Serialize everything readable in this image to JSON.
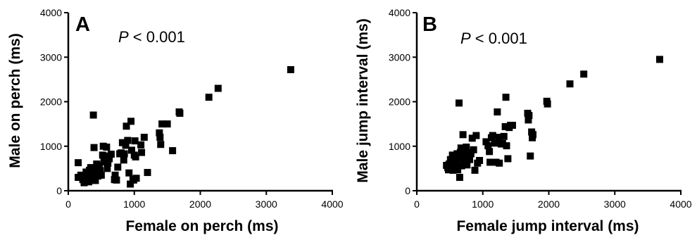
{
  "chart_data": [
    {
      "panel": "A",
      "type": "scatter",
      "xlabel": "Female on perch (ms)",
      "ylabel": "Male on perch (ms)",
      "annotation": {
        "p_symbol": "P",
        "p_text": " < 0.001"
      },
      "xlim": [
        0,
        4000
      ],
      "ylim": [
        0,
        4000
      ],
      "xticks": [
        0,
        1000,
        2000,
        3000,
        4000
      ],
      "yticks": [
        0,
        1000,
        2000,
        3000,
        4000
      ],
      "grid": false,
      "marker": "square",
      "color": "#000000",
      "points": [
        [
          150,
          630
        ],
        [
          150,
          300
        ],
        [
          190,
          350
        ],
        [
          220,
          250
        ],
        [
          240,
          180
        ],
        [
          260,
          330
        ],
        [
          270,
          420
        ],
        [
          290,
          380
        ],
        [
          300,
          300
        ],
        [
          310,
          200
        ],
        [
          320,
          460
        ],
        [
          330,
          350
        ],
        [
          340,
          520
        ],
        [
          350,
          420
        ],
        [
          360,
          300
        ],
        [
          370,
          380
        ],
        [
          380,
          1700
        ],
        [
          390,
          970
        ],
        [
          400,
          500
        ],
        [
          410,
          230
        ],
        [
          420,
          430
        ],
        [
          430,
          600
        ],
        [
          440,
          380
        ],
        [
          450,
          330
        ],
        [
          470,
          560
        ],
        [
          480,
          450
        ],
        [
          500,
          350
        ],
        [
          520,
          800
        ],
        [
          530,
          1000
        ],
        [
          540,
          650
        ],
        [
          560,
          780
        ],
        [
          580,
          980
        ],
        [
          590,
          500
        ],
        [
          600,
          620
        ],
        [
          620,
          720
        ],
        [
          650,
          820
        ],
        [
          700,
          250
        ],
        [
          710,
          350
        ],
        [
          730,
          240
        ],
        [
          750,
          530
        ],
        [
          780,
          830
        ],
        [
          800,
          850
        ],
        [
          820,
          1080
        ],
        [
          840,
          690
        ],
        [
          850,
          830
        ],
        [
          870,
          1020
        ],
        [
          880,
          1450
        ],
        [
          900,
          1130
        ],
        [
          920,
          400
        ],
        [
          940,
          150
        ],
        [
          950,
          1560
        ],
        [
          960,
          910
        ],
        [
          980,
          250
        ],
        [
          990,
          240
        ],
        [
          1000,
          800
        ],
        [
          1010,
          1120
        ],
        [
          1020,
          760
        ],
        [
          1030,
          280
        ],
        [
          1100,
          1030
        ],
        [
          1110,
          860
        ],
        [
          1150,
          1200
        ],
        [
          1200,
          410
        ],
        [
          1380,
          1300
        ],
        [
          1390,
          1200
        ],
        [
          1400,
          1040
        ],
        [
          1420,
          1500
        ],
        [
          1500,
          1500
        ],
        [
          1580,
          900
        ],
        [
          1680,
          1770
        ],
        [
          1690,
          1740
        ],
        [
          2130,
          2100
        ],
        [
          2270,
          2300
        ],
        [
          3370,
          2720
        ]
      ]
    },
    {
      "panel": "B",
      "type": "scatter",
      "xlabel": "Female jump interval (ms)",
      "ylabel": "Male jump interval (ms)",
      "annotation": {
        "p_symbol": "P",
        "p_text": " < 0.001"
      },
      "xlim": [
        0,
        4000
      ],
      "ylim": [
        0,
        4000
      ],
      "xticks": [
        0,
        1000,
        2000,
        3000,
        4000
      ],
      "yticks": [
        0,
        1000,
        2000,
        3000,
        4000
      ],
      "grid": false,
      "marker": "square",
      "color": "#000000",
      "points": [
        [
          450,
          570
        ],
        [
          470,
          520
        ],
        [
          480,
          470
        ],
        [
          490,
          600
        ],
        [
          510,
          700
        ],
        [
          520,
          580
        ],
        [
          530,
          530
        ],
        [
          540,
          800
        ],
        [
          550,
          460
        ],
        [
          560,
          650
        ],
        [
          570,
          760
        ],
        [
          580,
          550
        ],
        [
          590,
          700
        ],
        [
          600,
          620
        ],
        [
          610,
          830
        ],
        [
          620,
          470
        ],
        [
          630,
          720
        ],
        [
          640,
          1970
        ],
        [
          650,
          300
        ],
        [
          660,
          860
        ],
        [
          670,
          960
        ],
        [
          680,
          560
        ],
        [
          690,
          900
        ],
        [
          700,
          1260
        ],
        [
          710,
          780
        ],
        [
          720,
          680
        ],
        [
          730,
          950
        ],
        [
          740,
          720
        ],
        [
          750,
          980
        ],
        [
          760,
          580
        ],
        [
          780,
          860
        ],
        [
          800,
          700
        ],
        [
          820,
          830
        ],
        [
          840,
          1180
        ],
        [
          860,
          920
        ],
        [
          880,
          460
        ],
        [
          900,
          1240
        ],
        [
          920,
          620
        ],
        [
          950,
          680
        ],
        [
          1050,
          1100
        ],
        [
          1080,
          1010
        ],
        [
          1100,
          880
        ],
        [
          1110,
          640
        ],
        [
          1130,
          1190
        ],
        [
          1150,
          1240
        ],
        [
          1180,
          1070
        ],
        [
          1200,
          640
        ],
        [
          1220,
          1770
        ],
        [
          1240,
          1200
        ],
        [
          1250,
          620
        ],
        [
          1280,
          1050
        ],
        [
          1300,
          1060
        ],
        [
          1320,
          1220
        ],
        [
          1340,
          1440
        ],
        [
          1350,
          2100
        ],
        [
          1360,
          1010
        ],
        [
          1380,
          720
        ],
        [
          1400,
          1420
        ],
        [
          1420,
          1470
        ],
        [
          1450,
          1470
        ],
        [
          1680,
          1740
        ],
        [
          1690,
          1590
        ],
        [
          1700,
          1690
        ],
        [
          1720,
          780
        ],
        [
          1740,
          1320
        ],
        [
          1750,
          1190
        ],
        [
          1760,
          1260
        ],
        [
          1970,
          2010
        ],
        [
          1980,
          1950
        ],
        [
          2320,
          2400
        ],
        [
          2530,
          2620
        ],
        [
          3680,
          2950
        ]
      ]
    }
  ]
}
